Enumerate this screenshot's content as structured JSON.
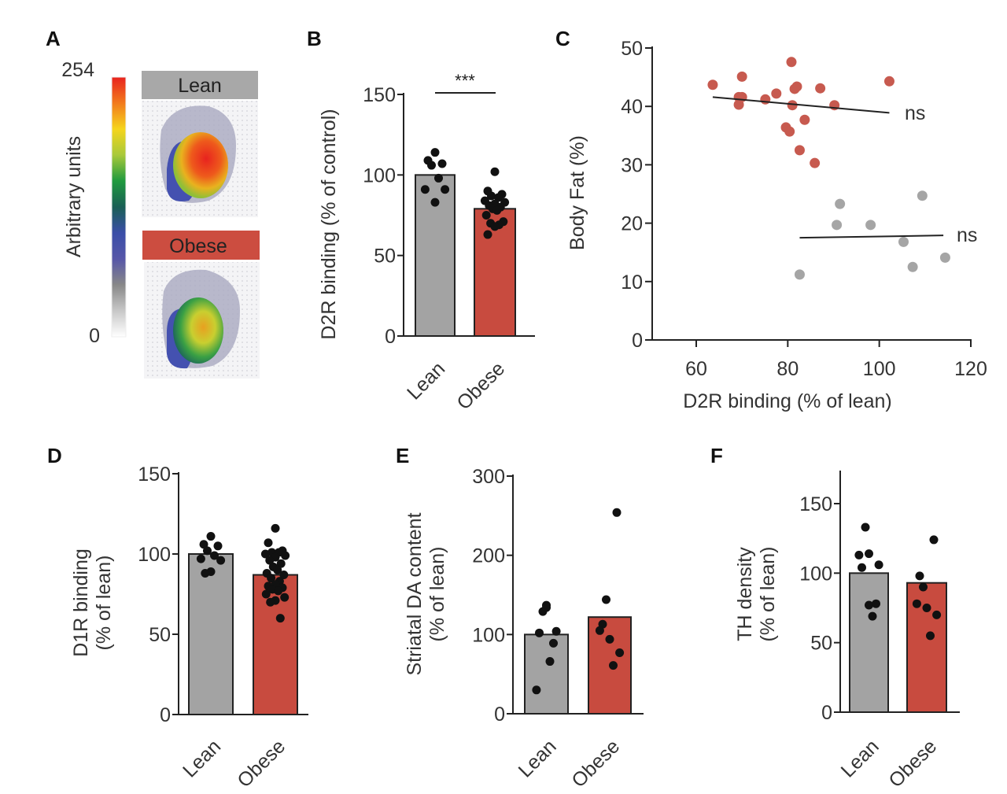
{
  "panel_letters": [
    "A",
    "B",
    "C",
    "D",
    "E",
    "F"
  ],
  "panel_a": {
    "colorbar_label": "Arbitrary units",
    "colorbar_max": "254",
    "colorbar_min": "0",
    "group_labels": [
      "Lean",
      "Obese"
    ],
    "colormap": [
      "#e8231e",
      "#f27a1c",
      "#f5d51c",
      "#a8c93a",
      "#1f9a3e",
      "#1a5f55",
      "#3a4ea8",
      "#5656a8",
      "#888888",
      "#c8c8c8",
      "#ffffff"
    ]
  },
  "colors": {
    "lean": "#a3a3a3",
    "obese": "#c84b3f",
    "lean_point": "#a5a5a5",
    "obese_point": "#c75a4f",
    "dot": "#111111"
  },
  "chart_data": [
    {
      "panel": "B",
      "type": "bar",
      "categories": [
        "Lean",
        "Obese"
      ],
      "values": [
        100,
        79
      ],
      "points": [
        [
          114,
          109,
          107,
          106,
          98,
          91,
          91,
          83
        ],
        [
          102,
          90,
          88,
          87,
          86,
          84,
          83,
          82,
          81,
          80,
          79,
          78,
          75,
          71,
          70,
          69,
          68,
          63
        ]
      ],
      "ylabel": "D2R binding (% of control)",
      "ylim": [
        0,
        150
      ],
      "yticks": [
        "0",
        "50",
        "100",
        "150"
      ],
      "significance": "***"
    },
    {
      "panel": "C",
      "type": "scatter",
      "xlabel": "D2R binding (% of lean)",
      "ylabel": "Body Fat (%)",
      "xlim": [
        50,
        120
      ],
      "ylim": [
        0,
        50
      ],
      "xticks": [
        "60",
        "80",
        "100",
        "120"
      ],
      "yticks": [
        "0",
        "10",
        "20",
        "30",
        "40",
        "50"
      ],
      "series": [
        {
          "group": "obese",
          "points": [
            [
              63.6,
              43.7
            ],
            [
              70,
              45.1
            ],
            [
              69.3,
              41.6
            ],
            [
              70,
              41.6
            ],
            [
              69.3,
              40.3
            ],
            [
              75.1,
              41.2
            ],
            [
              77.5,
              42.2
            ],
            [
              80.8,
              47.6
            ],
            [
              81.5,
              43
            ],
            [
              82,
              43.4
            ],
            [
              81,
              40.2
            ],
            [
              87.1,
              43.1
            ],
            [
              90.2,
              40.2
            ],
            [
              83.7,
              37.7
            ],
            [
              79.6,
              36.4
            ],
            [
              80.4,
              35.7
            ],
            [
              82.6,
              32.5
            ],
            [
              85.9,
              30.3
            ],
            [
              102.2,
              44.3
            ]
          ],
          "fit": [
            [
              63.6,
              41.6
            ],
            [
              102.2,
              38.9
            ]
          ],
          "annotation": "ns"
        },
        {
          "group": "lean",
          "points": [
            [
              82.6,
              11.2
            ],
            [
              90.7,
              19.7
            ],
            [
              91.4,
              23.3
            ],
            [
              98.1,
              19.7
            ],
            [
              105.3,
              16.8
            ],
            [
              107.3,
              12.5
            ],
            [
              109.4,
              24.7
            ],
            [
              114.4,
              14.1
            ]
          ],
          "fit": [
            [
              82.6,
              17.5
            ],
            [
              114,
              17.9
            ]
          ],
          "annotation": "ns"
        }
      ]
    },
    {
      "panel": "D",
      "type": "bar",
      "categories": [
        "Lean",
        "Obese"
      ],
      "values": [
        100,
        87
      ],
      "points": [
        [
          111,
          106,
          105,
          102,
          99,
          97,
          96,
          89,
          88
        ],
        [
          116,
          107,
          102,
          101,
          101,
          100,
          99,
          98,
          96,
          94,
          92,
          90,
          88,
          87,
          85,
          83,
          81,
          80,
          79,
          78,
          77,
          75,
          73,
          71,
          70,
          60
        ]
      ],
      "ylabel": [
        "D1R binding",
        "(% of lean)"
      ],
      "ylim": [
        0,
        150
      ],
      "yticks": [
        "0",
        "50",
        "100",
        "150"
      ]
    },
    {
      "panel": "E",
      "type": "bar",
      "categories": [
        "Lean",
        "Obese"
      ],
      "values": [
        100,
        122
      ],
      "points": [
        [
          137,
          102,
          89,
          129,
          66,
          30,
          104,
          134
        ],
        [
          94,
          113,
          254,
          144,
          61,
          105,
          77
        ]
      ],
      "ylabel": [
        "Striatal DA content",
        "(% of lean)"
      ],
      "ylim": [
        0,
        300
      ],
      "yticks": [
        "0",
        "100",
        "200",
        "300"
      ]
    },
    {
      "panel": "F",
      "type": "bar",
      "categories": [
        "Lean",
        "Obese"
      ],
      "values": [
        100,
        93
      ],
      "points": [
        [
          114,
          104,
          78,
          133,
          69,
          113,
          106,
          77
        ],
        [
          75,
          98,
          124,
          90,
          55,
          78,
          70
        ]
      ],
      "ylabel": [
        "TH density",
        "(% of lean)"
      ],
      "ylim": [
        0,
        170
      ],
      "yticks": [
        "0",
        "50",
        "100",
        "150"
      ]
    }
  ]
}
